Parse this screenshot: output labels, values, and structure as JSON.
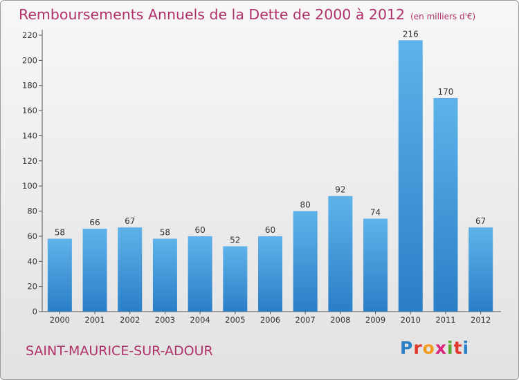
{
  "header": {
    "title": "Remboursements Annuels de la Dette de 2000 à 2012",
    "unit": "(en milliers d'€)"
  },
  "footer": {
    "commune": "SAINT-MAURICE-SUR-ADOUR",
    "logo_letters": [
      "P",
      "r",
      "o",
      "x",
      "i",
      "t",
      "i"
    ],
    "logo_colors": [
      "#2b7fc7",
      "#e03a2f",
      "#f29a1e",
      "#d9237c",
      "#5aa82f",
      "#e03a2f",
      "#2b7fc7"
    ]
  },
  "chart_data": {
    "type": "bar",
    "title": "Remboursements Annuels de la Dette de 2000 à 2012",
    "categories": [
      "2000",
      "2001",
      "2002",
      "2003",
      "2004",
      "2005",
      "2006",
      "2007",
      "2008",
      "2009",
      "2010",
      "2011",
      "2012"
    ],
    "values": [
      58,
      66,
      67,
      58,
      60,
      52,
      60,
      80,
      92,
      74,
      216,
      170,
      67
    ],
    "ylim": [
      0,
      220
    ],
    "yticks": [
      0,
      20,
      40,
      60,
      80,
      100,
      120,
      140,
      160,
      180,
      200,
      220
    ],
    "grid": false,
    "bar_color": "#3b95db"
  }
}
